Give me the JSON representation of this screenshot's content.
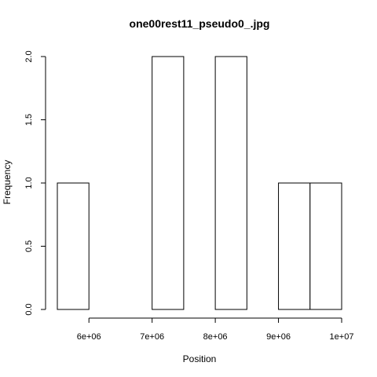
{
  "chart_data": {
    "type": "bar",
    "title": "one00rest11_pseudo0_.jpg",
    "xlabel": "Position",
    "ylabel": "Frequency",
    "bins": [
      {
        "start": 5500000,
        "end": 6000000,
        "count": 1
      },
      {
        "start": 6000000,
        "end": 6500000,
        "count": 0
      },
      {
        "start": 6500000,
        "end": 7000000,
        "count": 0
      },
      {
        "start": 7000000,
        "end": 7500000,
        "count": 2
      },
      {
        "start": 7500000,
        "end": 8000000,
        "count": 0
      },
      {
        "start": 8000000,
        "end": 8500000,
        "count": 2
      },
      {
        "start": 8500000,
        "end": 9000000,
        "count": 0
      },
      {
        "start": 9000000,
        "end": 9500000,
        "count": 1
      },
      {
        "start": 9500000,
        "end": 10000000,
        "count": 1
      }
    ],
    "xlim": [
      5500000,
      10000000
    ],
    "ylim": [
      0,
      2
    ],
    "x_ticks": [
      {
        "value": 6000000,
        "label": "6e+06"
      },
      {
        "value": 7000000,
        "label": "7e+06"
      },
      {
        "value": 8000000,
        "label": "8e+06"
      },
      {
        "value": 9000000,
        "label": "9e+06"
      },
      {
        "value": 10000000,
        "label": "1e+07"
      }
    ],
    "y_ticks": [
      {
        "value": 0,
        "label": "0.0"
      },
      {
        "value": 0.5,
        "label": "0.5"
      },
      {
        "value": 1,
        "label": "1.0"
      },
      {
        "value": 1.5,
        "label": "1.5"
      },
      {
        "value": 2,
        "label": "2.0"
      }
    ],
    "grid": false,
    "bar_fill": "#ffffff",
    "bar_stroke": "#000000"
  }
}
